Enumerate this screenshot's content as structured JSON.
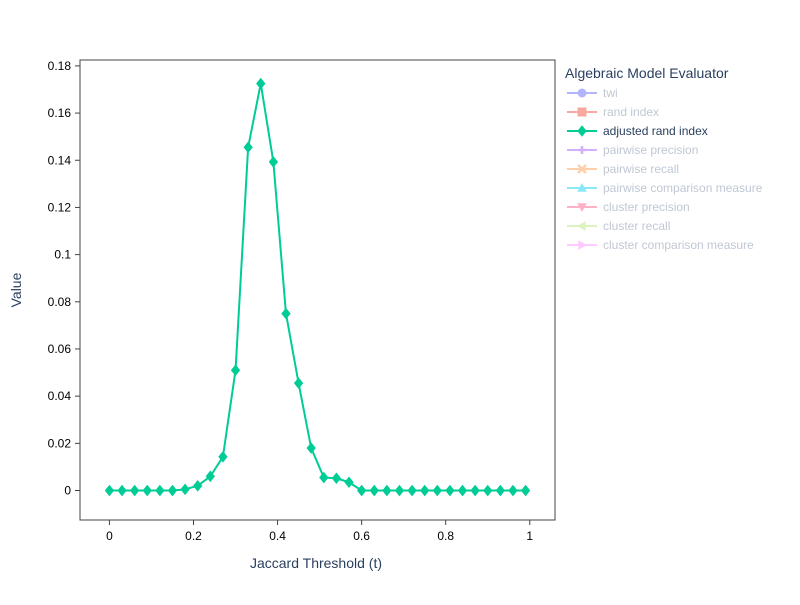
{
  "chart_data": {
    "type": "line",
    "title": "",
    "xlabel": "Jaccard Threshold (t)",
    "ylabel": "Value",
    "xlim": [
      -0.07,
      1.06
    ],
    "ylim": [
      -0.0125,
      0.1825
    ],
    "x_ticks": [
      0,
      0.2,
      0.4,
      0.6,
      0.8,
      1
    ],
    "x_tick_labels": [
      "0",
      "0.2",
      "0.4",
      "0.6",
      "0.8",
      "1"
    ],
    "y_ticks": [
      0,
      0.02,
      0.04,
      0.06,
      0.08,
      0.1,
      0.12,
      0.14,
      0.16,
      0.18
    ],
    "y_tick_labels": [
      "0",
      "0.02",
      "0.04",
      "0.06",
      "0.08",
      "0.1",
      "0.12",
      "0.14",
      "0.16",
      "0.18"
    ],
    "grid": false,
    "legend": {
      "title": "Algebraic Model Evaluator",
      "placement": "right",
      "entries": [
        {
          "name": "twi",
          "color": "#636efa",
          "marker": "circle",
          "visible": false
        },
        {
          "name": "rand index",
          "color": "#EF553B",
          "marker": "square",
          "visible": false
        },
        {
          "name": "adjusted rand index",
          "color": "#00cc96",
          "marker": "diamond",
          "visible": true
        },
        {
          "name": "pairwise precision",
          "color": "#ab63fa",
          "marker": "cross",
          "visible": false
        },
        {
          "name": "pairwise recall",
          "color": "#FFA15A",
          "marker": "x",
          "visible": false
        },
        {
          "name": "pairwise comparison measure",
          "color": "#19d3f3",
          "marker": "triangle-up",
          "visible": false
        },
        {
          "name": "cluster precision",
          "color": "#FF6692",
          "marker": "triangle-down",
          "visible": false
        },
        {
          "name": "cluster recall",
          "color": "#B6E880",
          "marker": "triangle-left",
          "visible": false
        },
        {
          "name": "cluster comparison measure",
          "color": "#FF97FF",
          "marker": "triangle-right",
          "visible": false
        }
      ]
    },
    "series": [
      {
        "name": "adjusted rand index",
        "color": "#00cc96",
        "marker": "diamond",
        "x": [
          0,
          0.03,
          0.06,
          0.09,
          0.12,
          0.15,
          0.18,
          0.21,
          0.24,
          0.27,
          0.3,
          0.33,
          0.36,
          0.39,
          0.42,
          0.45,
          0.48,
          0.51,
          0.54,
          0.57,
          0.6,
          0.63,
          0.66,
          0.69,
          0.72,
          0.75,
          0.78,
          0.81,
          0.84,
          0.87,
          0.9,
          0.93,
          0.96,
          0.99
        ],
        "y": [
          0,
          0,
          0,
          0,
          0,
          0,
          0.0005,
          0.002,
          0.006,
          0.0143,
          0.051,
          0.1455,
          0.1725,
          0.1393,
          0.075,
          0.0455,
          0.018,
          0.0055,
          0.0052,
          0.0035,
          0,
          0,
          0,
          0,
          0,
          0,
          0,
          0,
          0,
          0,
          0,
          0,
          0,
          0
        ]
      }
    ]
  }
}
